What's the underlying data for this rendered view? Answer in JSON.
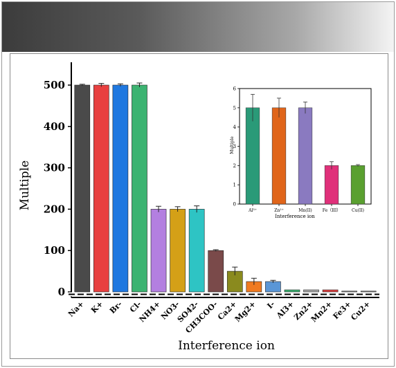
{
  "chart_data": [
    {
      "type": "bar",
      "xlabel": "Interference ion",
      "ylabel": "Multiple",
      "ylim": [
        0,
        550
      ],
      "yticks": [
        0,
        100,
        200,
        300,
        400,
        500
      ],
      "grid": false,
      "categories": [
        "Na+",
        "K+",
        "Br-",
        "Cl-",
        "NH4+",
        "NO3-",
        "SO42-",
        "CH3COO-",
        "Ca2+",
        "Mg2+",
        "I-",
        "Al3+",
        "Zn2+",
        "Mn2+",
        "Fe3+",
        "Cu2+"
      ],
      "values": [
        500,
        500,
        500,
        500,
        200,
        200,
        200,
        100,
        50,
        25,
        25,
        5,
        5,
        5,
        2,
        2
      ],
      "errors": [
        2,
        4,
        3,
        5,
        7,
        6,
        8,
        2,
        10,
        8,
        3,
        0,
        0,
        0,
        0,
        0
      ],
      "colors": [
        "#4a4a4a",
        "#e84040",
        "#1f78e0",
        "#3cb371",
        "#b37fe0",
        "#d4a017",
        "#2ec4c4",
        "#7a4a4a",
        "#8a8a1e",
        "#f07a20",
        "#5a96d6",
        "#3cb371",
        "#a8a8a8",
        "#e04040",
        "#888888",
        "#888888"
      ]
    },
    {
      "type": "bar",
      "xlabel": "Interference ion",
      "ylabel": "Multiple",
      "ylim": [
        0,
        6
      ],
      "yticks": [
        0,
        1,
        2,
        3,
        4,
        5,
        6
      ],
      "grid": false,
      "categories": [
        "Al³⁺",
        "Zn²⁺",
        "Mn(II)",
        "Fe（III）",
        "Cu(II)"
      ],
      "values": [
        5,
        5,
        5,
        2,
        2
      ],
      "errors": [
        0.7,
        0.5,
        0.3,
        0.2,
        0.05
      ],
      "colors": [
        "#2a9a78",
        "#e0651a",
        "#8a7ac0",
        "#e0307a",
        "#5aa030"
      ]
    }
  ]
}
